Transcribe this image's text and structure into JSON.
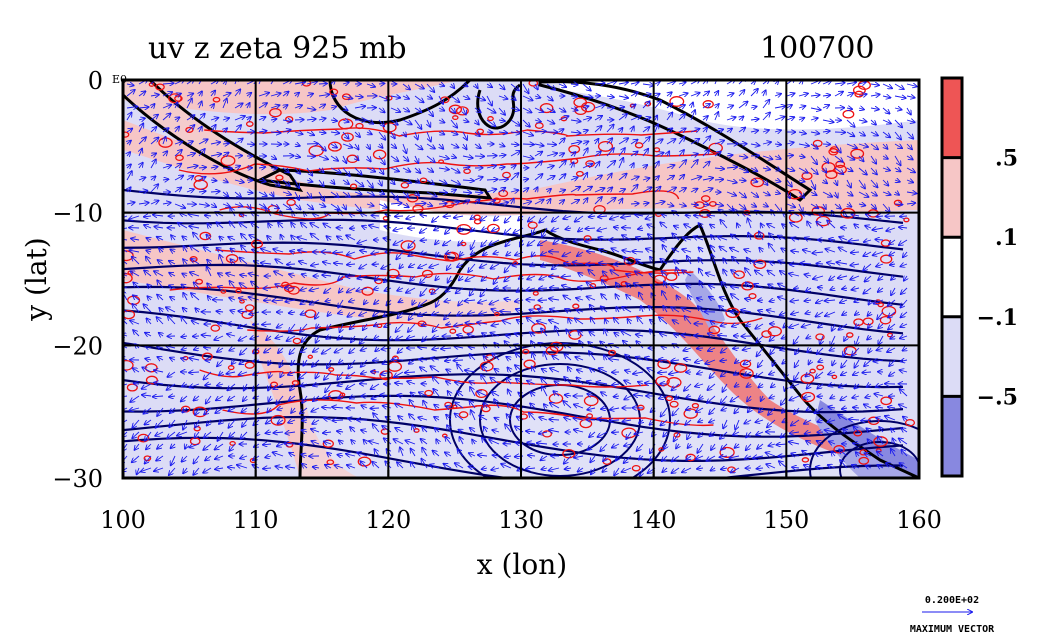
{
  "chart_data": {
    "type": "heatmap",
    "title": "uv z zeta 925 mb",
    "time_label": "100700",
    "xlabel": "x (lon)",
    "ylabel": "y (lat)",
    "xlim": [
      100,
      160
    ],
    "ylim": [
      -30,
      0
    ],
    "x_ticks": [
      "100",
      "110",
      "120",
      "130",
      "140",
      "150",
      "160"
    ],
    "y_ticks": [
      "0",
      "−10",
      "−20",
      "−30"
    ],
    "y_tick_suffix_top": "E0",
    "grid": true,
    "colorbar": {
      "labels": [
        ".5",
        ".1",
        "−.1",
        "−.5"
      ],
      "colors": [
        "#ee5555",
        "#f6c6c6",
        "#ffffff",
        "#dcdcf6",
        "#8888e0"
      ]
    },
    "colors": {
      "vectors": "#1a1aee",
      "contours_thick": "#000066",
      "contours_red": "#ee1111",
      "coast": "#000000"
    },
    "vector_legend": {
      "magnitude": "0.200E+02",
      "label": "MAXIMUM VECTOR"
    }
  }
}
